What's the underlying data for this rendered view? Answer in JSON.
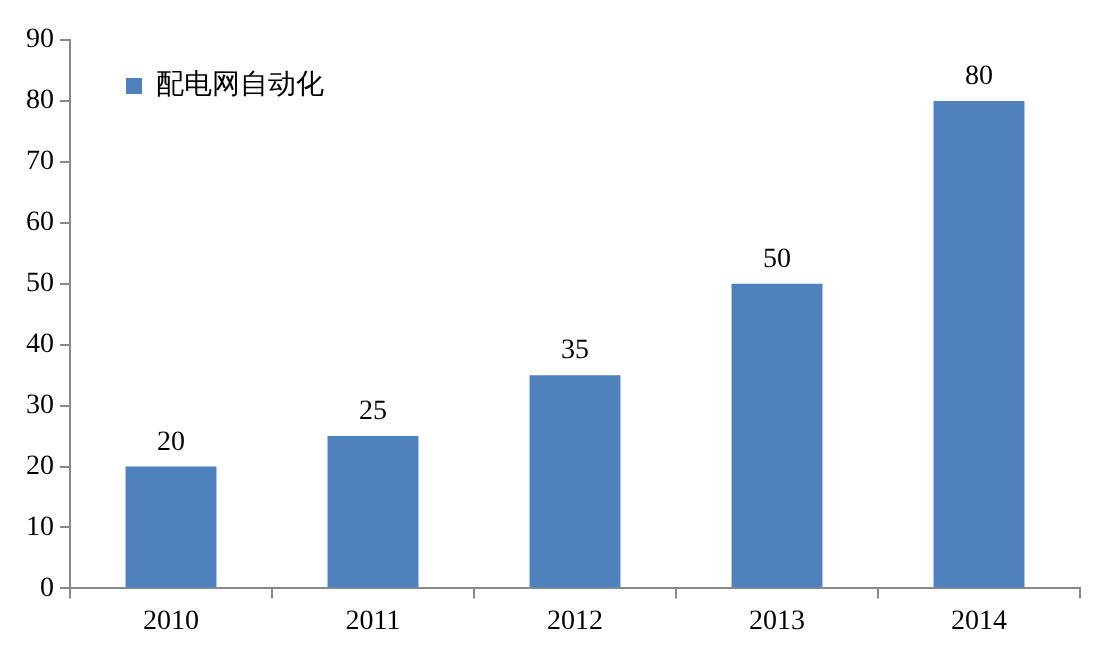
{
  "chart_data": {
    "type": "bar",
    "categories": [
      "2010",
      "2011",
      "2012",
      "2013",
      "2014"
    ],
    "series": [
      {
        "name": "配电网自动化",
        "color": "#4f81bd",
        "values": [
          20,
          25,
          35,
          50,
          80
        ]
      }
    ],
    "ylim": [
      0,
      90
    ],
    "yticks": [
      0,
      10,
      20,
      30,
      40,
      50,
      60,
      70,
      80,
      90
    ],
    "grid": false,
    "legend": "top left",
    "data_labels": true
  }
}
